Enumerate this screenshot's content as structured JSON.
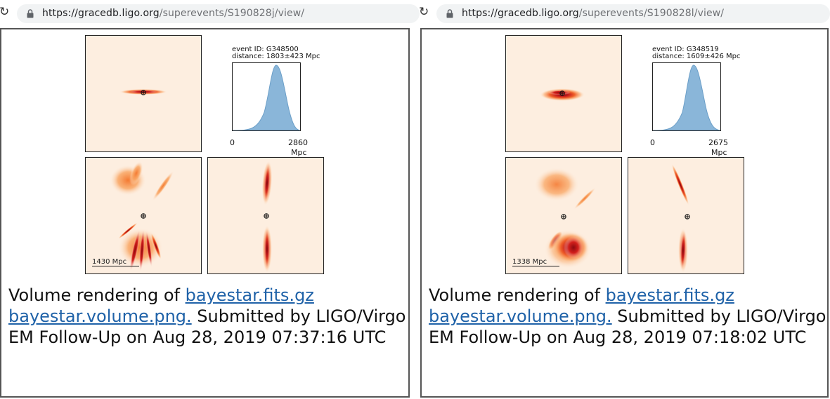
{
  "left": {
    "url": {
      "base": "https://gracedb.ligo.org",
      "path": "/superevents/S190828j/view/"
    },
    "event_id": "event ID: G348500",
    "distance": "distance: 1803±423 Mpc",
    "axis_min": "0",
    "axis_max": "2860",
    "axis_unit": "Mpc",
    "scale_label": "1430 Mpc",
    "caption": {
      "prefix": "Volume rendering of ",
      "link1": "bayestar.fits.gz",
      "link2": "bayestar.volume.png.",
      "suffix": " Submitted by LIGO/Virgo EM Follow-Up on Aug 28, 2019 07:37:16 UTC"
    }
  },
  "right": {
    "url": {
      "base": "https://gracedb.ligo.org",
      "path": "/superevents/S190828l/view/"
    },
    "event_id": "event ID: G348519",
    "distance": "distance: 1609±426 Mpc",
    "axis_min": "0",
    "axis_max": "2675",
    "axis_unit": "Mpc",
    "scale_label": "1338 Mpc",
    "caption": {
      "prefix": "Volume rendering of ",
      "link1": "bayestar.fits.gz",
      "link2": "bayestar.volume.png.",
      "suffix": " Submitted by LIGO/Virgo EM Follow-Up on Aug 28, 2019 07:18:02 UTC"
    }
  },
  "colors": {
    "density_fill": "#8ab6d9",
    "link": "#1f62a8",
    "background_tint": "#fdeee0"
  },
  "icons": [
    "reload-icon",
    "lock-icon",
    "origin-marker-icon"
  ]
}
